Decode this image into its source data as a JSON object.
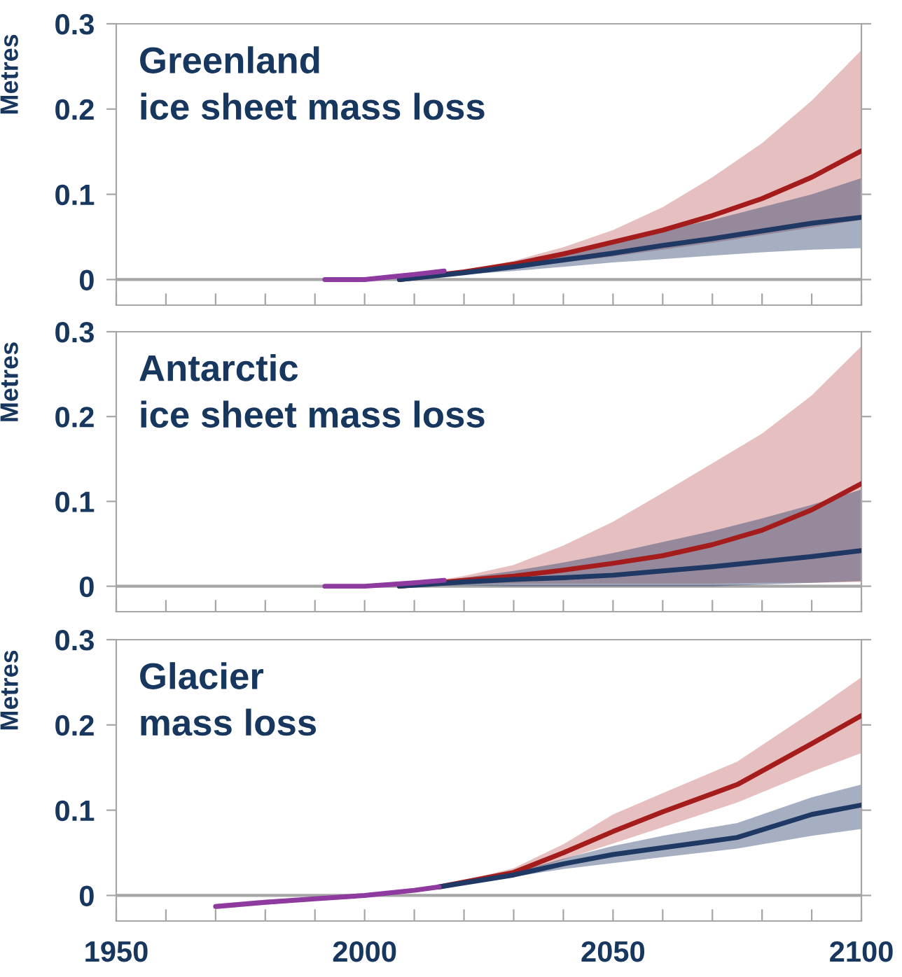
{
  "chart_data": [
    {
      "type": "line",
      "title": "Greenland\nice sheet mass loss",
      "ylabel": "Metres",
      "xlim": [
        1950,
        2100
      ],
      "ylim": [
        -0.03,
        0.3
      ],
      "yticks": [
        0,
        0.1,
        0.2,
        0.3
      ],
      "xticks": [
        {
          "value": 1950,
          "label": null
        },
        {
          "value": 1960,
          "label": null
        },
        {
          "value": 1970,
          "label": null
        },
        {
          "value": 1980,
          "label": null
        },
        {
          "value": 1990,
          "label": null
        },
        {
          "value": 2000,
          "label": null
        },
        {
          "value": 2010,
          "label": null
        },
        {
          "value": 2020,
          "label": null
        },
        {
          "value": 2030,
          "label": null
        },
        {
          "value": 2040,
          "label": null
        },
        {
          "value": 2050,
          "label": null
        },
        {
          "value": 2060,
          "label": null
        },
        {
          "value": 2070,
          "label": null
        },
        {
          "value": 2080,
          "label": null
        },
        {
          "value": 2090,
          "label": null
        },
        {
          "value": 2100,
          "label": null
        }
      ],
      "tick_labels": "y",
      "ref_lines": [
        {
          "axis": "y",
          "value": 0,
          "color": "#a6a6a6"
        }
      ],
      "series": [
        {
          "color": "#a51c1c",
          "x": [
            2007,
            2020,
            2030,
            2040,
            2050,
            2060,
            2070,
            2080,
            2090,
            2100
          ],
          "values": [
            0,
            0.009,
            0.018,
            0.03,
            0.044,
            0.058,
            0.075,
            0.095,
            0.12,
            0.151
          ],
          "lower": [
            0,
            0.007,
            0.013,
            0.02,
            0.027,
            0.035,
            0.043,
            0.052,
            0.061,
            0.07
          ],
          "upper": [
            0,
            0.011,
            0.022,
            0.038,
            0.058,
            0.085,
            0.12,
            0.16,
            0.21,
            0.269
          ]
        },
        {
          "color": "#1f3864",
          "x": [
            2007,
            2020,
            2030,
            2040,
            2050,
            2060,
            2070,
            2080,
            2090,
            2100
          ],
          "values": [
            0,
            0.008,
            0.015,
            0.023,
            0.031,
            0.04,
            0.048,
            0.057,
            0.066,
            0.073
          ],
          "lower": [
            0,
            0.006,
            0.01,
            0.015,
            0.02,
            0.024,
            0.028,
            0.032,
            0.035,
            0.037
          ],
          "upper": [
            0,
            0.01,
            0.021,
            0.033,
            0.045,
            0.058,
            0.07,
            0.085,
            0.1,
            0.119
          ]
        },
        {
          "color": "#8e3a9e",
          "x": [
            1992,
            1997,
            2000,
            2005,
            2010,
            2016
          ],
          "values": [
            0,
            0,
            0,
            0.003,
            0.006,
            0.01
          ]
        }
      ]
    },
    {
      "type": "line",
      "title": "Antarctic\nice sheet mass loss",
      "ylabel": "Metres",
      "xlim": [
        1950,
        2100
      ],
      "ylim": [
        -0.03,
        0.3
      ],
      "yticks": [
        0,
        0.1,
        0.2,
        0.3
      ],
      "xticks": [
        {
          "value": 1950,
          "label": null
        },
        {
          "value": 1960,
          "label": null
        },
        {
          "value": 1970,
          "label": null
        },
        {
          "value": 1980,
          "label": null
        },
        {
          "value": 1990,
          "label": null
        },
        {
          "value": 2000,
          "label": null
        },
        {
          "value": 2010,
          "label": null
        },
        {
          "value": 2020,
          "label": null
        },
        {
          "value": 2030,
          "label": null
        },
        {
          "value": 2040,
          "label": null
        },
        {
          "value": 2050,
          "label": null
        },
        {
          "value": 2060,
          "label": null
        },
        {
          "value": 2070,
          "label": null
        },
        {
          "value": 2080,
          "label": null
        },
        {
          "value": 2090,
          "label": null
        },
        {
          "value": 2100,
          "label": null
        }
      ],
      "tick_labels": "y",
      "ref_lines": [
        {
          "axis": "y",
          "value": 0,
          "color": "#a6a6a6"
        }
      ],
      "series": [
        {
          "color": "#a51c1c",
          "x": [
            2007,
            2020,
            2030,
            2040,
            2050,
            2060,
            2070,
            2080,
            2090,
            2100
          ],
          "values": [
            0,
            0.007,
            0.012,
            0.019,
            0.027,
            0.036,
            0.049,
            0.066,
            0.09,
            0.121
          ],
          "lower": [
            0,
            0.002,
            0.003,
            0.003,
            0.003,
            0.003,
            0.003,
            0.004,
            0.004,
            0.005
          ],
          "upper": [
            0,
            0.012,
            0.025,
            0.048,
            0.076,
            0.11,
            0.145,
            0.18,
            0.225,
            0.283
          ]
        },
        {
          "color": "#1f3864",
          "x": [
            2007,
            2020,
            2030,
            2040,
            2050,
            2060,
            2070,
            2080,
            2090,
            2100
          ],
          "values": [
            0,
            0.005,
            0.008,
            0.01,
            0.013,
            0.018,
            0.023,
            0.029,
            0.035,
            0.042
          ],
          "lower": [
            0,
            0.001,
            0,
            0,
            0,
            0,
            0,
            0.002,
            0.004,
            0.006
          ],
          "upper": [
            0,
            0.01,
            0.018,
            0.028,
            0.039,
            0.052,
            0.065,
            0.08,
            0.096,
            0.114
          ]
        },
        {
          "color": "#8e3a9e",
          "x": [
            1992,
            2000,
            2005,
            2010,
            2016
          ],
          "values": [
            0,
            0,
            0.002,
            0.004,
            0.007
          ]
        }
      ]
    },
    {
      "type": "line",
      "title": "Glacier\nmass loss",
      "ylabel": "Metres",
      "xlim": [
        1950,
        2100
      ],
      "ylim": [
        -0.03,
        0.3
      ],
      "yticks": [
        0,
        0.1,
        0.2,
        0.3
      ],
      "xticks": [
        1950,
        {
          "value": 1960,
          "label": null
        },
        {
          "value": 1970,
          "label": null
        },
        {
          "value": 1980,
          "label": null
        },
        {
          "value": 1990,
          "label": null
        },
        2000,
        {
          "value": 2010,
          "label": null
        },
        {
          "value": 2020,
          "label": null
        },
        {
          "value": 2030,
          "label": null
        },
        {
          "value": 2040,
          "label": null
        },
        2050,
        {
          "value": 2060,
          "label": null
        },
        {
          "value": 2070,
          "label": null
        },
        {
          "value": 2080,
          "label": null
        },
        {
          "value": 2090,
          "label": null
        },
        2100
      ],
      "ref_lines": [
        {
          "axis": "y",
          "value": 0,
          "color": "#a6a6a6"
        }
      ],
      "series": [
        {
          "color": "#a51c1c",
          "x": [
            2015,
            2030,
            2040,
            2050,
            2060,
            2075,
            2090,
            2100
          ],
          "values": [
            0.01,
            0.027,
            0.05,
            0.075,
            0.098,
            0.13,
            0.178,
            0.211
          ],
          "lower": [
            0.01,
            0.024,
            0.042,
            0.061,
            0.08,
            0.109,
            0.145,
            0.167
          ],
          "upper": [
            0.01,
            0.032,
            0.06,
            0.095,
            0.12,
            0.157,
            0.215,
            0.256
          ]
        },
        {
          "color": "#1f3864",
          "x": [
            2015,
            2030,
            2040,
            2050,
            2060,
            2075,
            2090,
            2100
          ],
          "values": [
            0.01,
            0.024,
            0.037,
            0.048,
            0.056,
            0.068,
            0.095,
            0.106
          ],
          "lower": [
            0.01,
            0.022,
            0.031,
            0.038,
            0.045,
            0.055,
            0.07,
            0.078
          ],
          "upper": [
            0.01,
            0.027,
            0.043,
            0.058,
            0.07,
            0.085,
            0.115,
            0.13
          ]
        },
        {
          "color": "#8e3a9e",
          "x": [
            1970,
            1980,
            1990,
            2000,
            2010,
            2015
          ],
          "values": [
            -0.013,
            -0.008,
            -0.004,
            0,
            0.006,
            0.01
          ],
          "lower": [
            -0.016,
            -0.011,
            -0.006,
            -0.002,
            0.004,
            0.008
          ],
          "upper": [
            -0.01,
            -0.005,
            -0.002,
            0.002,
            0.008,
            0.012
          ]
        }
      ]
    }
  ]
}
